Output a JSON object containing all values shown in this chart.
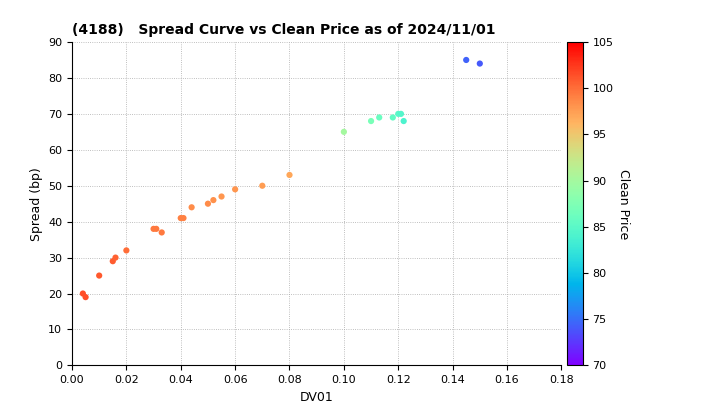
{
  "title": "(4188)   Spread Curve vs Clean Price as of 2024/11/01",
  "xlabel": "DV01",
  "ylabel": "Spread (bp)",
  "xlim": [
    0.0,
    0.18
  ],
  "ylim": [
    0,
    90
  ],
  "xticks": [
    0.0,
    0.02,
    0.04,
    0.06,
    0.08,
    0.1,
    0.12,
    0.14,
    0.16,
    0.18
  ],
  "yticks": [
    0,
    10,
    20,
    30,
    40,
    50,
    60,
    70,
    80,
    90
  ],
  "colorbar_label": "Clean Price",
  "colorbar_min": 70,
  "colorbar_max": 105,
  "colorbar_ticks": [
    70,
    75,
    80,
    85,
    90,
    95,
    100,
    105
  ],
  "marker_size": 20,
  "points": [
    {
      "dv01": 0.004,
      "spread": 20,
      "price": 101.5
    },
    {
      "dv01": 0.005,
      "spread": 19,
      "price": 101.5
    },
    {
      "dv01": 0.01,
      "spread": 25,
      "price": 101.0
    },
    {
      "dv01": 0.015,
      "spread": 29,
      "price": 100.8
    },
    {
      "dv01": 0.016,
      "spread": 30,
      "price": 100.5
    },
    {
      "dv01": 0.02,
      "spread": 32,
      "price": 100.0
    },
    {
      "dv01": 0.03,
      "spread": 38,
      "price": 99.5
    },
    {
      "dv01": 0.031,
      "spread": 38,
      "price": 99.5
    },
    {
      "dv01": 0.033,
      "spread": 37,
      "price": 99.5
    },
    {
      "dv01": 0.04,
      "spread": 41,
      "price": 99.0
    },
    {
      "dv01": 0.041,
      "spread": 41,
      "price": 99.0
    },
    {
      "dv01": 0.044,
      "spread": 44,
      "price": 98.5
    },
    {
      "dv01": 0.05,
      "spread": 45,
      "price": 98.5
    },
    {
      "dv01": 0.052,
      "spread": 46,
      "price": 98.3
    },
    {
      "dv01": 0.055,
      "spread": 47,
      "price": 98.0
    },
    {
      "dv01": 0.06,
      "spread": 49,
      "price": 98.0
    },
    {
      "dv01": 0.07,
      "spread": 50,
      "price": 97.5
    },
    {
      "dv01": 0.08,
      "spread": 53,
      "price": 97.0
    },
    {
      "dv01": 0.1,
      "spread": 65,
      "price": 90.0
    },
    {
      "dv01": 0.11,
      "spread": 68,
      "price": 87.0
    },
    {
      "dv01": 0.113,
      "spread": 69,
      "price": 86.0
    },
    {
      "dv01": 0.118,
      "spread": 69,
      "price": 85.5
    },
    {
      "dv01": 0.12,
      "spread": 70,
      "price": 85.0
    },
    {
      "dv01": 0.121,
      "spread": 70,
      "price": 84.5
    },
    {
      "dv01": 0.122,
      "spread": 68,
      "price": 84.0
    },
    {
      "dv01": 0.145,
      "spread": 85,
      "price": 74.5
    },
    {
      "dv01": 0.15,
      "spread": 84,
      "price": 74.0
    }
  ]
}
